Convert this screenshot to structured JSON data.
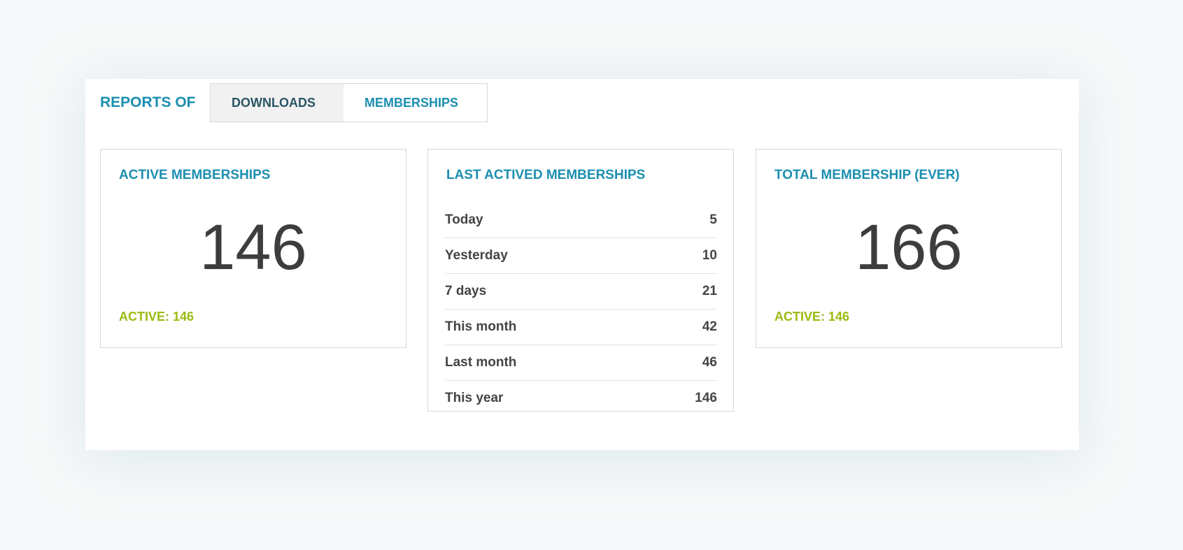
{
  "header": {
    "reports_label": "REPORTS OF",
    "tabs": [
      {
        "label": "DOWNLOADS"
      },
      {
        "label": "MEMBERSHIPS"
      }
    ]
  },
  "colors": {
    "accent": "#1b8fb1",
    "active_green": "#9bbb10",
    "text": "#3d3d3d"
  },
  "cards": {
    "active": {
      "title": "ACTIVE MEMBERSHIPS",
      "value": "146",
      "footer": "ACTIVE: 146"
    },
    "last": {
      "title": "LAST ACTIVED MEMBERSHIPS",
      "rows": [
        {
          "label": "Today",
          "value": "5"
        },
        {
          "label": "Yesterday",
          "value": "10"
        },
        {
          "label": "7 days",
          "value": "21"
        },
        {
          "label": "This month",
          "value": "42"
        },
        {
          "label": "Last month",
          "value": "46"
        },
        {
          "label": "This year",
          "value": "146"
        }
      ]
    },
    "total": {
      "title": "TOTAL MEMBERSHIP (EVER)",
      "value": "166",
      "footer": "ACTIVE: 146"
    }
  }
}
